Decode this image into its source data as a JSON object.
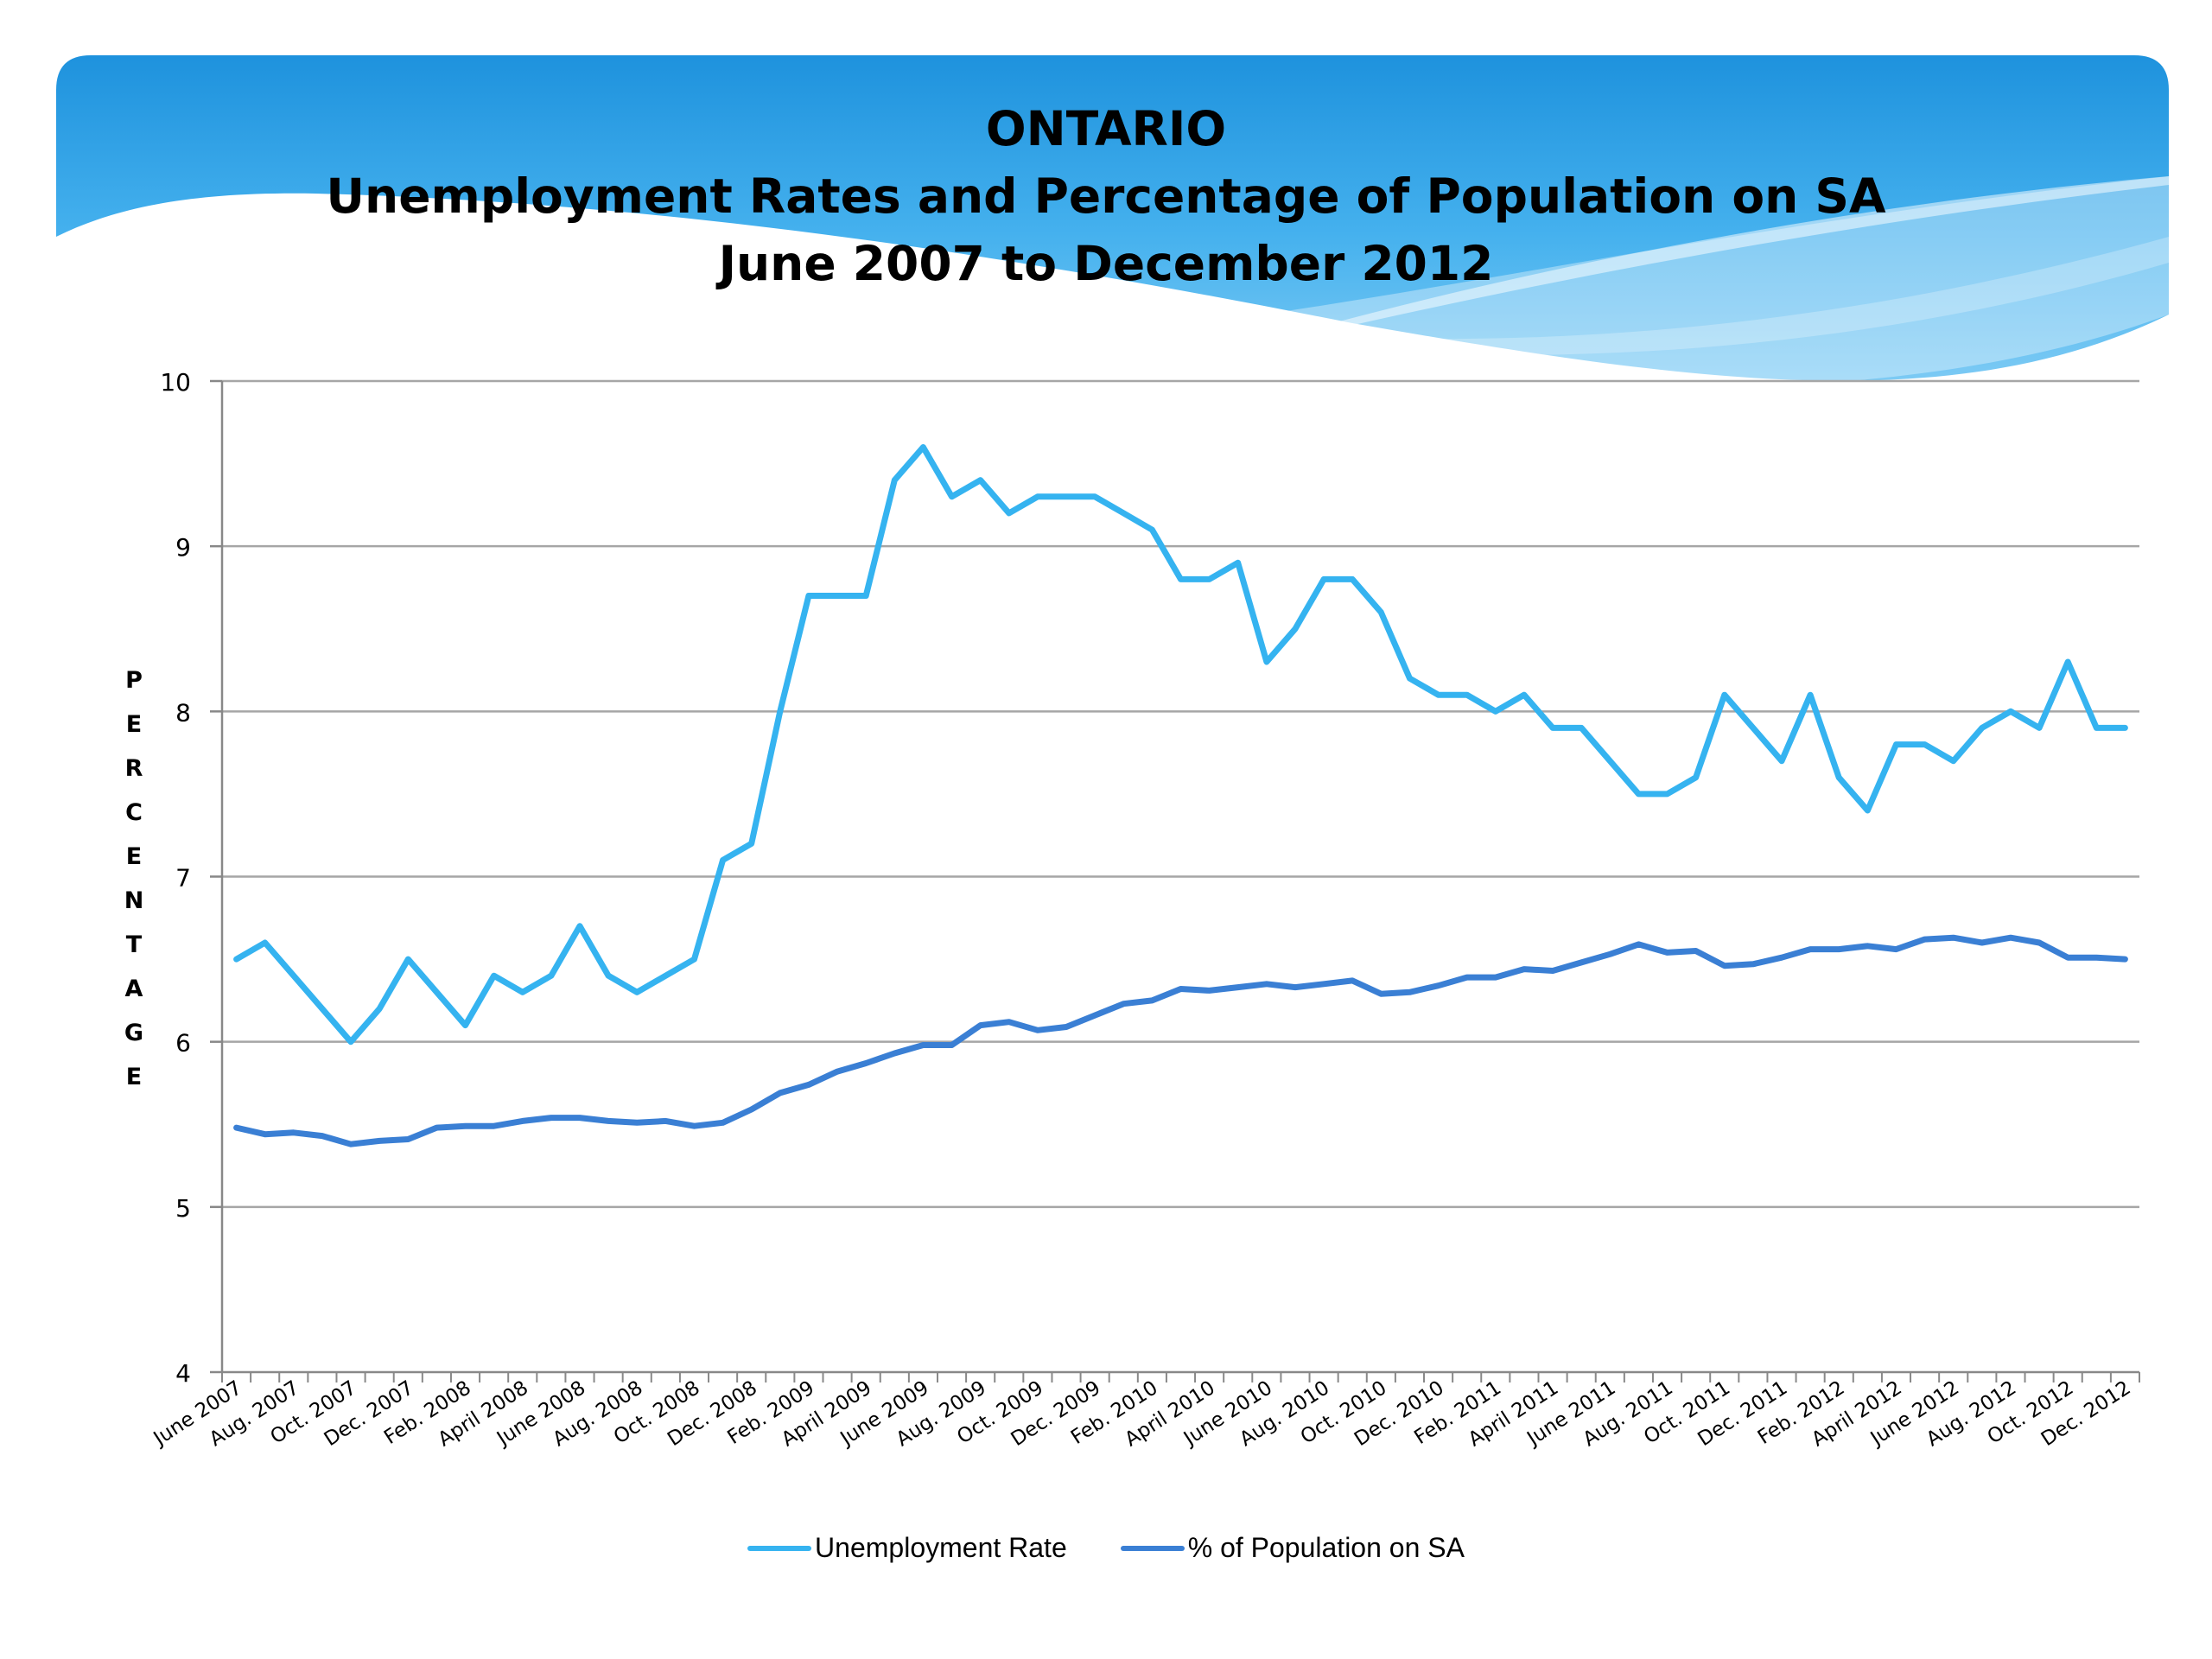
{
  "chart_data": {
    "type": "line",
    "title": [
      "ONTARIO",
      "Unemployment Rates and Percentage of Population on SA",
      "June 2007 to December 2012"
    ],
    "ylabel": "PERCENTAGE",
    "xlabel": "",
    "ylim": [
      4,
      10
    ],
    "yticks": [
      4,
      5,
      6,
      7,
      8,
      9,
      10
    ],
    "grid": true,
    "legend_position": "bottom",
    "x_tick_labels": [
      "June 2007",
      "Aug. 2007",
      "Oct. 2007",
      "Dec. 2007",
      "Feb. 2008",
      "April 2008",
      "June 2008",
      "Aug. 2008",
      "Oct. 2008",
      "Dec. 2008",
      "Feb. 2009",
      "April 2009",
      "June 2009",
      "Aug. 2009",
      "Oct. 2009",
      "Dec. 2009",
      "Feb. 2010",
      "April 2010",
      "June 2010",
      "Aug. 2010",
      "Oct. 2010",
      "Dec. 2010",
      "Feb. 2011",
      "April 2011",
      "June 2011",
      "Aug. 2011",
      "Oct. 2011",
      "Dec. 2011",
      "Feb. 2012",
      "April 2012",
      "June 2012",
      "Aug. 2012",
      "Oct. 2012",
      "Dec. 2012"
    ],
    "series": [
      {
        "name": "Unemployment Rate",
        "color": "#35b3f0",
        "values": [
          6.5,
          6.6,
          6.4,
          6.2,
          6.0,
          6.2,
          6.5,
          6.3,
          6.1,
          6.4,
          6.3,
          6.4,
          6.7,
          6.4,
          6.3,
          6.4,
          6.5,
          7.1,
          7.2,
          8.0,
          8.7,
          8.7,
          8.7,
          9.4,
          9.6,
          9.3,
          9.4,
          9.2,
          9.3,
          9.3,
          9.3,
          9.2,
          9.1,
          8.8,
          8.8,
          8.9,
          8.3,
          8.5,
          8.8,
          8.8,
          8.6,
          8.2,
          8.1,
          8.1,
          8.0,
          8.1,
          7.9,
          7.9,
          7.7,
          7.5,
          7.5,
          7.6,
          8.1,
          7.9,
          7.7,
          8.1,
          7.6,
          7.4,
          7.8,
          7.8,
          7.7,
          7.9,
          8.0,
          7.9,
          8.3,
          7.9,
          7.9
        ]
      },
      {
        "name": "% of Population on SA",
        "color": "#3a7fd4",
        "values": [
          5.48,
          5.44,
          5.45,
          5.43,
          5.38,
          5.4,
          5.41,
          5.48,
          5.49,
          5.49,
          5.52,
          5.54,
          5.54,
          5.52,
          5.51,
          5.52,
          5.49,
          5.51,
          5.59,
          5.69,
          5.74,
          5.82,
          5.87,
          5.93,
          5.98,
          5.98,
          6.1,
          6.12,
          6.07,
          6.09,
          6.16,
          6.23,
          6.25,
          6.32,
          6.31,
          6.33,
          6.35,
          6.33,
          6.35,
          6.37,
          6.29,
          6.3,
          6.34,
          6.39,
          6.39,
          6.44,
          6.43,
          6.48,
          6.53,
          6.59,
          6.54,
          6.55,
          6.46,
          6.47,
          6.51,
          6.56,
          6.56,
          6.58,
          6.56,
          6.62,
          6.63,
          6.6,
          6.63,
          6.6,
          6.51,
          6.51,
          6.5
        ]
      }
    ]
  }
}
